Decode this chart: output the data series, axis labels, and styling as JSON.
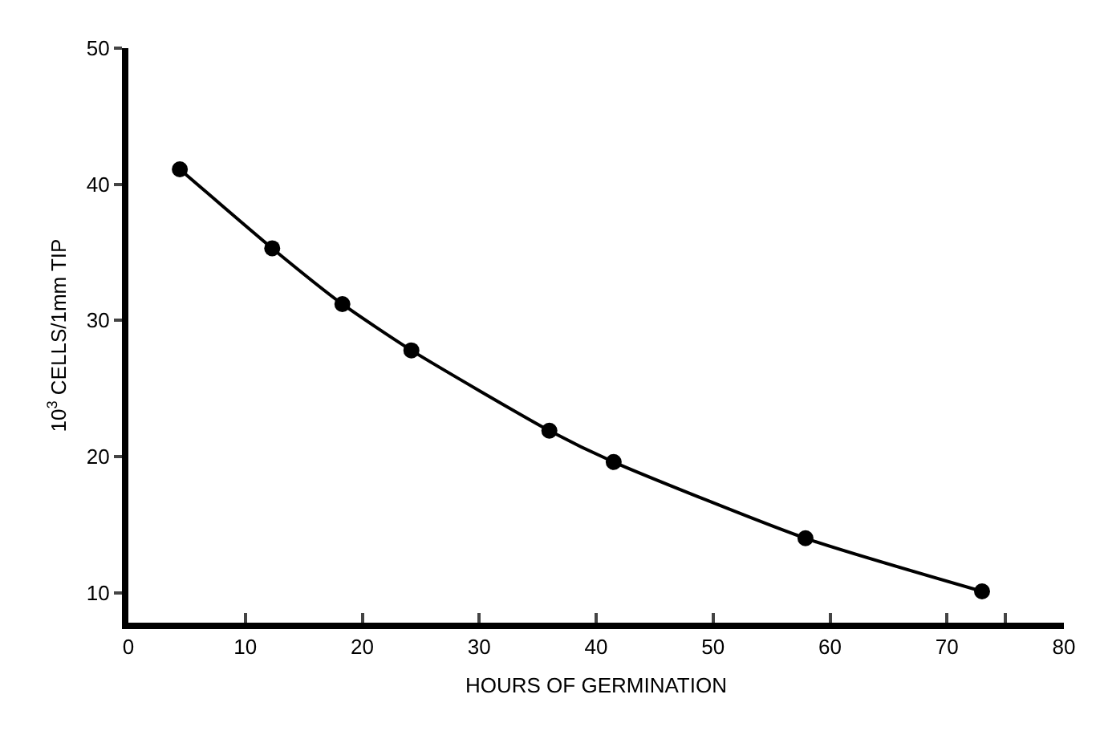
{
  "chart_data": {
    "type": "line",
    "xlabel": "HOURS OF GERMINATION",
    "ylabel": "10$^{3}$ CELLS/1mm TIP",
    "x": [
      4.4,
      12.3,
      18.3,
      24.2,
      36.0,
      41.5,
      57.9,
      73.0
    ],
    "series": [
      {
        "color": "#000000",
        "values": [
          41.1,
          35.3,
          31.2,
          27.8,
          21.9,
          19.6,
          14.0,
          10.1
        ]
      }
    ],
    "xlim": [
      0,
      80
    ],
    "xticks": [
      0,
      10,
      20,
      30,
      40,
      50,
      60,
      70,
      {
        "value": 75,
        "label": null
      },
      80
    ],
    "ylim": [
      7.8,
      50
    ],
    "yticks": [
      10,
      20,
      30,
      40,
      50
    ],
    "grid": false,
    "marker": "circle",
    "line_style": "solid"
  }
}
